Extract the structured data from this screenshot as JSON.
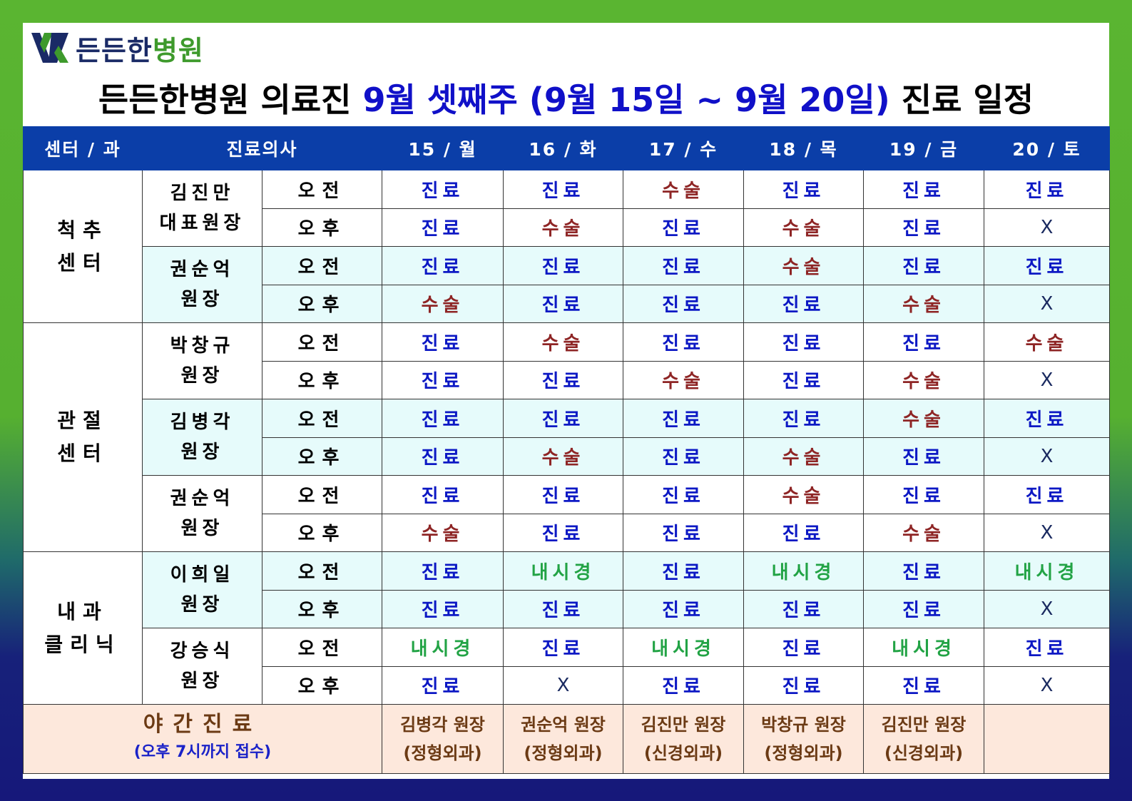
{
  "logo": {
    "name_a": "든든한",
    "name_b": "병원"
  },
  "title": {
    "prefix": "든든한병원 의료진 ",
    "highlight": "9월 셋째주 (9월 15일 ~ 9월 20일)",
    "suffix": " 진료 일정"
  },
  "headers": {
    "center": "센터 / 과",
    "doctor": "진료의사",
    "days": [
      "15 / 월",
      "16 / 화",
      "17 / 수",
      "18 / 목",
      "19 / 금",
      "20 / 토"
    ]
  },
  "slots": {
    "am": "오전",
    "pm": "오후"
  },
  "centers": [
    {
      "l1": "척추",
      "l2": "센터"
    },
    {
      "l1": "관절",
      "l2": "센터"
    },
    {
      "l1": "내과",
      "l2": "클리닉"
    }
  ],
  "doctors": [
    {
      "l1": "김진만",
      "l2": "대표원장"
    },
    {
      "l1": "권순억",
      "l2": "원장"
    },
    {
      "l1": "박창규",
      "l2": "원장"
    },
    {
      "l1": "김병각",
      "l2": "원장"
    },
    {
      "l1": "권순억",
      "l2": "원장"
    },
    {
      "l1": "이희일",
      "l2": "원장"
    },
    {
      "l1": "강승식",
      "l2": "원장"
    }
  ],
  "schedule": [
    {
      "am": [
        "진료",
        "진료",
        "수술",
        "진료",
        "진료",
        "진료"
      ],
      "pm": [
        "진료",
        "수술",
        "진료",
        "수술",
        "진료",
        "X"
      ]
    },
    {
      "am": [
        "진료",
        "진료",
        "진료",
        "수술",
        "진료",
        "진료"
      ],
      "pm": [
        "수술",
        "진료",
        "진료",
        "진료",
        "수술",
        "X"
      ]
    },
    {
      "am": [
        "진료",
        "수술",
        "진료",
        "진료",
        "진료",
        "수술"
      ],
      "pm": [
        "진료",
        "진료",
        "수술",
        "진료",
        "수술",
        "X"
      ]
    },
    {
      "am": [
        "진료",
        "진료",
        "진료",
        "진료",
        "수술",
        "진료"
      ],
      "pm": [
        "진료",
        "수술",
        "진료",
        "수술",
        "진료",
        "X"
      ]
    },
    {
      "am": [
        "진료",
        "진료",
        "진료",
        "수술",
        "진료",
        "진료"
      ],
      "pm": [
        "수술",
        "진료",
        "진료",
        "진료",
        "수술",
        "X"
      ]
    },
    {
      "am": [
        "진료",
        "내시경",
        "진료",
        "내시경",
        "진료",
        "내시경"
      ],
      "pm": [
        "진료",
        "진료",
        "진료",
        "진료",
        "진료",
        "X"
      ]
    },
    {
      "am": [
        "내시경",
        "진료",
        "내시경",
        "진료",
        "내시경",
        "진료"
      ],
      "pm": [
        "진료",
        "X",
        "진료",
        "진료",
        "진료",
        "X"
      ]
    }
  ],
  "night": {
    "title": "야간진료",
    "subtitle": "(오후 7시까지 접수)",
    "doctors": [
      {
        "name": "김병각 원장",
        "dept": "(정형외과)"
      },
      {
        "name": "권순억 원장",
        "dept": "(정형외과)"
      },
      {
        "name": "김진만 원장",
        "dept": "(신경외과)"
      },
      {
        "name": "박창규 원장",
        "dept": "(정형외과)"
      },
      {
        "name": "김진만 원장",
        "dept": "(신경외과)"
      },
      {
        "name": "",
        "dept": ""
      }
    ]
  },
  "colors": {
    "header_bg": "#0b3ea8",
    "clinic": "#0c18c4",
    "surgery": "#8e2525",
    "endoscopy": "#22a345",
    "night_bg": "#fde8dc",
    "shade": "#e6fbfb"
  }
}
